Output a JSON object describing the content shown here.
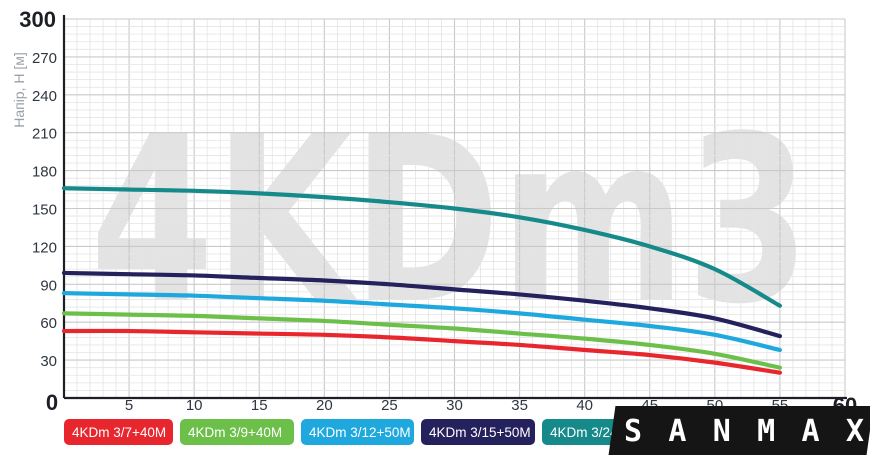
{
  "chart_data": {
    "type": "line",
    "title": "",
    "watermark": "4KDm3",
    "xlabel": "",
    "ylabel": "Напір, Н [м]",
    "xlim": [
      0,
      60
    ],
    "ylim": [
      0,
      300
    ],
    "x_ticks": [
      "0",
      "5",
      "10",
      "15",
      "20",
      "25",
      "30",
      "35",
      "40",
      "45",
      "50",
      "55",
      "60"
    ],
    "y_ticks": [
      "30",
      "60",
      "90",
      "120",
      "150",
      "180",
      "210",
      "240",
      "270",
      "300"
    ],
    "y_zero_label": "0",
    "grid": true,
    "legend_position": "bottom",
    "series": [
      {
        "name": "4KDm 3/7+40M",
        "color": "#e8262d",
        "x": [
          0,
          5,
          10,
          15,
          20,
          25,
          30,
          35,
          40,
          45,
          50,
          55
        ],
        "y": [
          53,
          53,
          52,
          51,
          50,
          48,
          45,
          42,
          38,
          34,
          28,
          20
        ]
      },
      {
        "name": "4KDm 3/9+40M",
        "color": "#6cc04a",
        "x": [
          0,
          5,
          10,
          15,
          20,
          25,
          30,
          35,
          40,
          45,
          50,
          55
        ],
        "y": [
          67,
          66,
          65,
          63,
          61,
          58,
          55,
          51,
          47,
          42,
          35,
          24
        ]
      },
      {
        "name": "4KDm 3/12+50M",
        "color": "#1ea8de",
        "x": [
          0,
          5,
          10,
          15,
          20,
          25,
          30,
          35,
          40,
          45,
          50,
          55
        ],
        "y": [
          83,
          82,
          81,
          79,
          77,
          74,
          71,
          67,
          62,
          57,
          50,
          38
        ]
      },
      {
        "name": "4KDm 3/15+50M",
        "color": "#24215c",
        "x": [
          0,
          5,
          10,
          15,
          20,
          25,
          30,
          35,
          40,
          45,
          50,
          55
        ],
        "y": [
          99,
          98,
          97,
          95,
          93,
          90,
          86,
          82,
          77,
          71,
          63,
          49
        ]
      },
      {
        "name": "4KDm 3/24+",
        "color": "#168a8a",
        "x": [
          0,
          5,
          10,
          15,
          20,
          25,
          30,
          35,
          40,
          45,
          50,
          55
        ],
        "y": [
          166,
          165,
          164,
          162,
          159,
          155,
          150,
          143,
          133,
          120,
          102,
          73
        ]
      }
    ]
  },
  "brand": {
    "logo_text": "SANMAX",
    "logo_color": "#151515"
  }
}
